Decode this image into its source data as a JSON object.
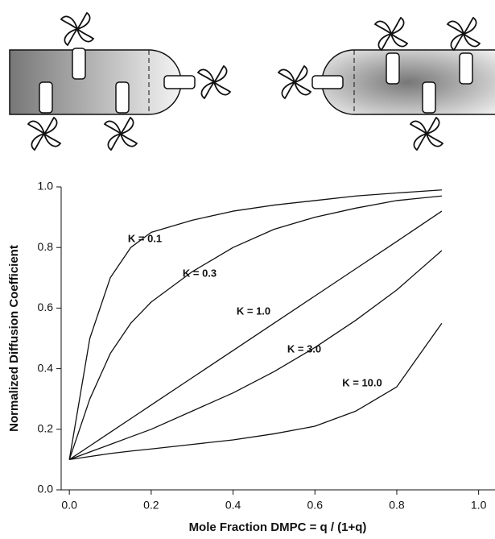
{
  "chart_data": {
    "type": "line",
    "x_label": "Mole Fraction DMPC = q / (1+q)",
    "y_label": "Normalized Diffusion Coefficient",
    "x": [
      0,
      0.05,
      0.1,
      0.15,
      0.2,
      0.3,
      0.4,
      0.5,
      0.6,
      0.7,
      0.8,
      0.91
    ],
    "series": [
      {
        "name": "K = 0.1",
        "color": "#111111",
        "values": [
          0.1,
          0.5,
          0.7,
          0.8,
          0.85,
          0.89,
          0.92,
          0.94,
          0.955,
          0.97,
          0.98,
          0.99
        ]
      },
      {
        "name": "K = 0.3",
        "color": "#111111",
        "values": [
          0.1,
          0.3,
          0.45,
          0.55,
          0.62,
          0.72,
          0.8,
          0.86,
          0.9,
          0.93,
          0.955,
          0.97
        ]
      },
      {
        "name": "K = 1.0",
        "color": "#111111",
        "values": [
          0.1,
          0.145,
          0.19,
          0.235,
          0.28,
          0.37,
          0.46,
          0.55,
          0.64,
          0.73,
          0.82,
          0.92
        ]
      },
      {
        "name": "K = 3.0",
        "color": "#111111",
        "values": [
          0.1,
          0.125,
          0.15,
          0.175,
          0.2,
          0.26,
          0.32,
          0.39,
          0.47,
          0.56,
          0.66,
          0.79
        ]
      },
      {
        "name": "K = 10.0",
        "color": "#111111",
        "values": [
          0.1,
          0.11,
          0.12,
          0.128,
          0.135,
          0.15,
          0.165,
          0.185,
          0.21,
          0.26,
          0.34,
          0.55
        ]
      }
    ],
    "xlim": [
      -0.02,
      1.04
    ],
    "ylim": [
      0,
      1
    ],
    "xticks": [
      {
        "value": 0,
        "label": "0.0"
      },
      0.2,
      0.4,
      0.6,
      0.8,
      {
        "value": 1,
        "label": "1.0"
      }
    ],
    "yticks": [
      {
        "value": 0,
        "label": "0.0"
      },
      0.2,
      0.4,
      0.6,
      0.8,
      {
        "value": 1,
        "label": "1.0"
      }
    ],
    "grid": false
  }
}
